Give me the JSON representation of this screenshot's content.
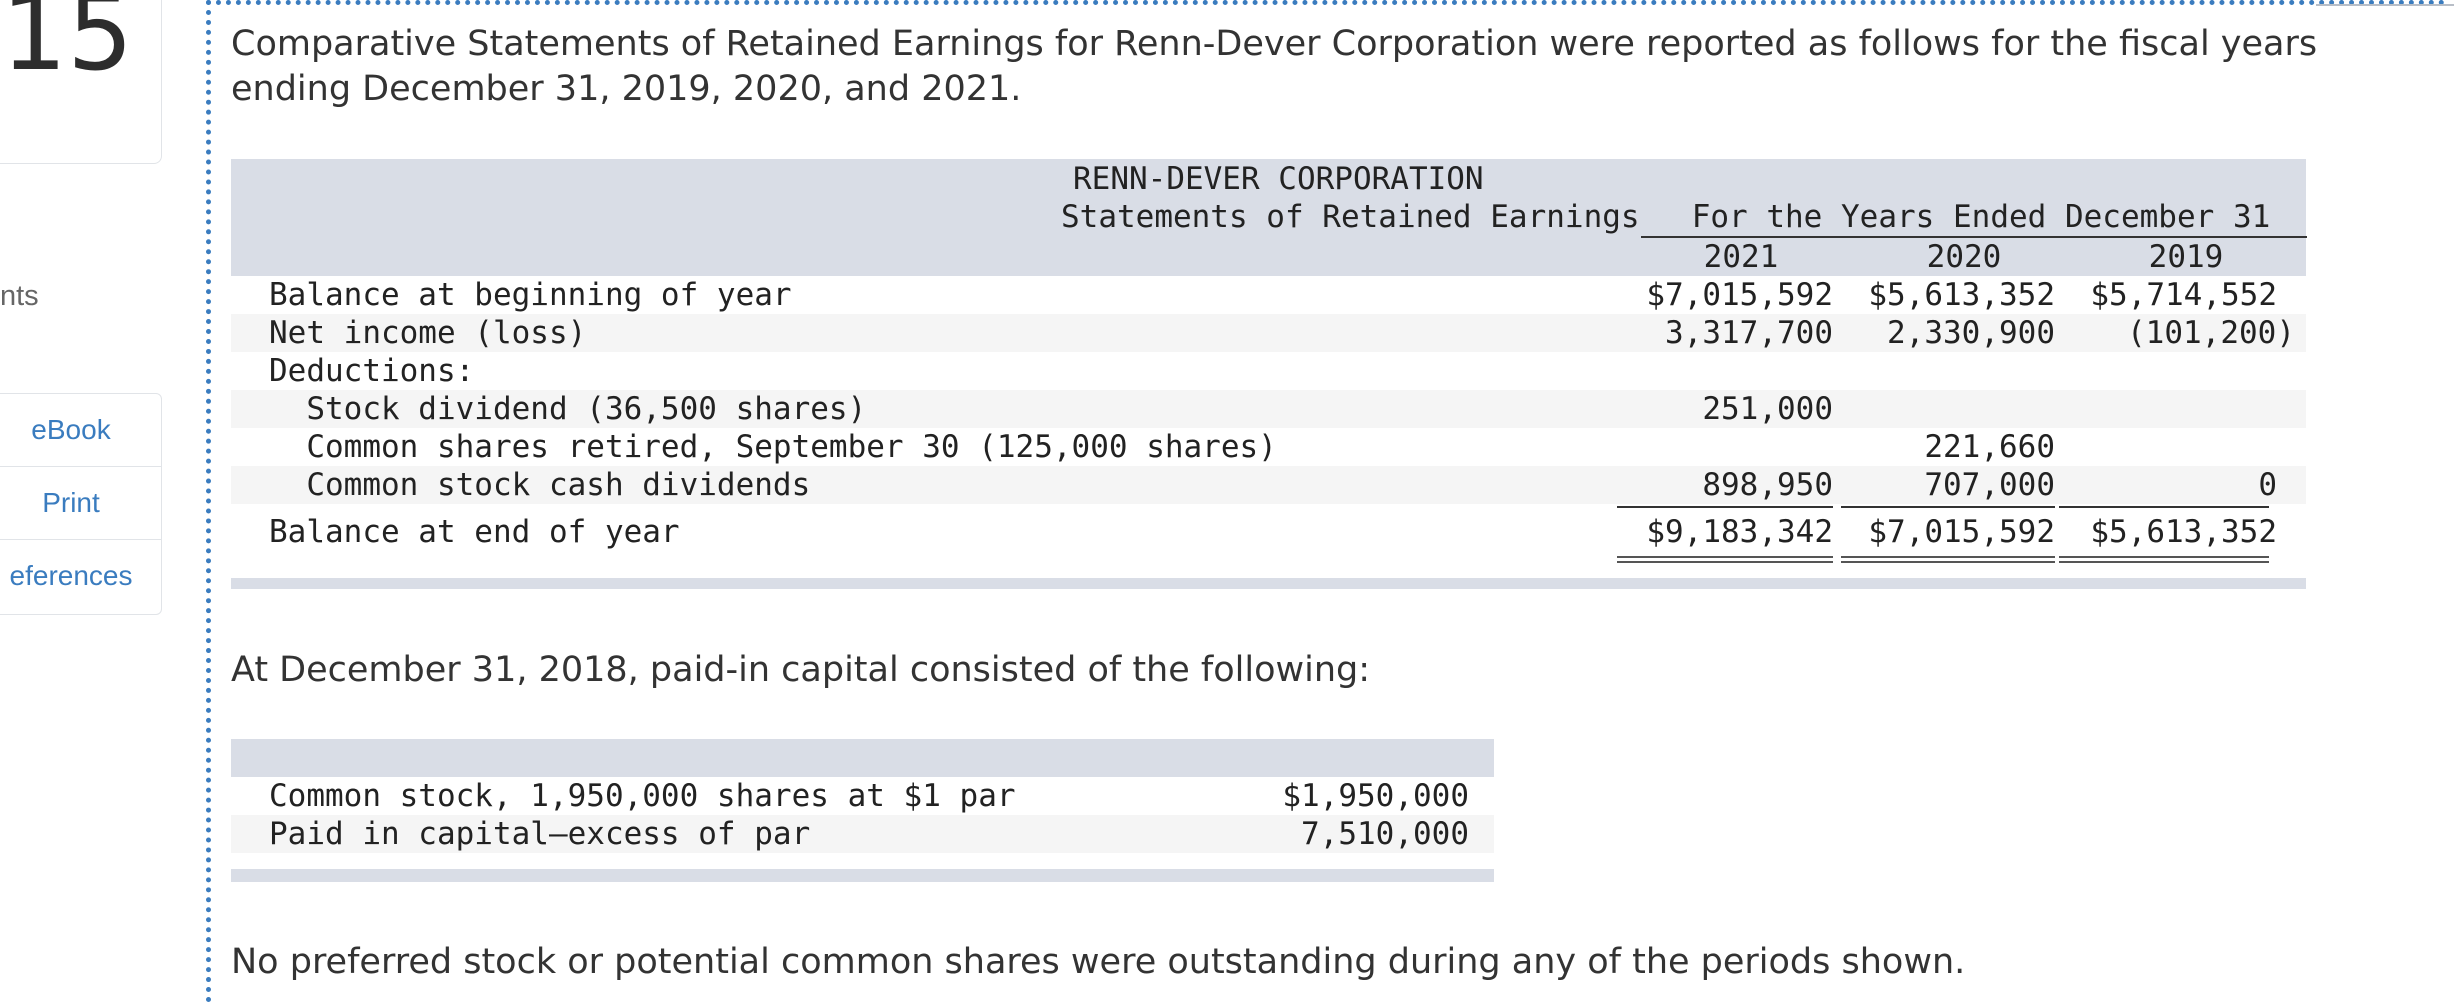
{
  "sidebar": {
    "question_number": "15",
    "points_label": "nts",
    "tools": [
      "eBook",
      "Print",
      "eferences"
    ]
  },
  "intro_text": "Comparative Statements of Retained Earnings for Renn-Dever Corporation were reported as follows for the fiscal years ending December 31, 2019, 2020, and 2021.",
  "statement": {
    "company": "RENN-DEVER CORPORATION",
    "title": "Statements of Retained Earnings",
    "period_header": "For the Years Ended December 31",
    "years": [
      "2021",
      "2020",
      "2019"
    ],
    "rows": [
      {
        "label": "Balance at beginning of year",
        "values": [
          "$7,015,592",
          "$5,613,352",
          "$5,714,552"
        ]
      },
      {
        "label": "Net income (loss)",
        "values": [
          "3,317,700",
          "2,330,900",
          "(101,200)"
        ]
      },
      {
        "label": "Deductions:",
        "values": [
          "",
          "",
          ""
        ]
      },
      {
        "label": "  Stock dividend (36,500 shares)",
        "values": [
          "251,000",
          "",
          ""
        ]
      },
      {
        "label": "  Common shares retired, September 30 (125,000 shares)",
        "values": [
          "",
          "221,660",
          ""
        ]
      },
      {
        "label": "  Common stock cash dividends",
        "values": [
          "898,950",
          "707,000",
          "0"
        ]
      },
      {
        "label": "Balance at end of year",
        "values": [
          "$9,183,342",
          "$7,015,592",
          "$5,613,352"
        ]
      }
    ]
  },
  "capital_intro": "At December 31, 2018, paid-in capital consisted of the following:",
  "capital": {
    "rows": [
      {
        "label": "Common stock, 1,950,000 shares at $1 par",
        "value": "$1,950,000"
      },
      {
        "label": "Paid in capital—excess of par",
        "value": "7,510,000"
      }
    ]
  },
  "footer_text": "No preferred stock or potential common shares were outstanding during any of the periods shown.",
  "colors": {
    "accent": "#3a7cbf",
    "table_band": "#d9dde6",
    "row_alt": "#f5f5f5"
  }
}
